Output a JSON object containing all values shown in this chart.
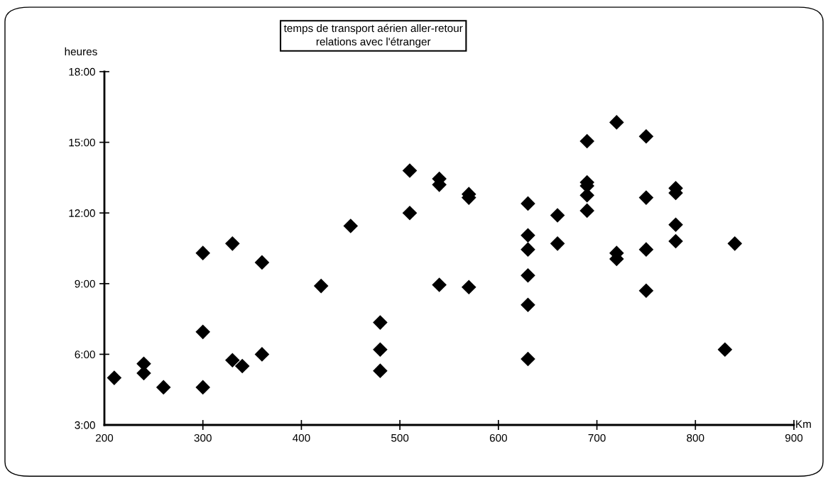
{
  "chart_data": {
    "type": "scatter",
    "title": "temps de transport aérien aller-retour\nrelations avec l'étranger",
    "xlabel": "Km",
    "ylabel": "heures",
    "x": [
      210,
      240,
      240,
      260,
      300,
      300,
      300,
      330,
      330,
      340,
      360,
      360,
      420,
      450,
      480,
      480,
      480,
      510,
      510,
      540,
      540,
      540,
      570,
      570,
      570,
      630,
      630,
      630,
      630,
      630,
      630,
      660,
      660,
      690,
      690,
      690,
      690,
      690,
      720,
      720,
      720,
      750,
      750,
      750,
      750,
      780,
      780,
      780,
      780,
      830,
      840
    ],
    "values": [
      5.0,
      5.6,
      5.2,
      4.6,
      4.6,
      6.95,
      10.3,
      5.75,
      10.7,
      5.5,
      6.0,
      9.9,
      8.9,
      11.45,
      7.35,
      6.2,
      5.3,
      12.0,
      13.8,
      13.45,
      13.2,
      8.95,
      12.8,
      12.65,
      8.85,
      12.4,
      11.05,
      10.45,
      9.35,
      8.1,
      5.8,
      11.9,
      10.7,
      15.05,
      13.3,
      13.15,
      12.75,
      12.1,
      15.85,
      10.3,
      10.05,
      15.25,
      12.65,
      10.45,
      8.7,
      13.05,
      12.85,
      11.5,
      10.8,
      6.2,
      10.7
    ],
    "color": "#000000",
    "marker": "diamond",
    "xlim": [
      200,
      900
    ],
    "xticks": [
      200,
      300,
      400,
      500,
      600,
      700,
      800,
      900
    ],
    "ylim": [
      3,
      18
    ],
    "yticks": [
      {
        "value": 3,
        "label": "3:00"
      },
      {
        "value": 6,
        "label": "6:00"
      },
      {
        "value": 9,
        "label": "9:00"
      },
      {
        "value": 12,
        "label": "12:00"
      },
      {
        "value": 15,
        "label": "15:00"
      },
      {
        "value": 18,
        "label": "18:00"
      }
    ],
    "grid": false
  }
}
